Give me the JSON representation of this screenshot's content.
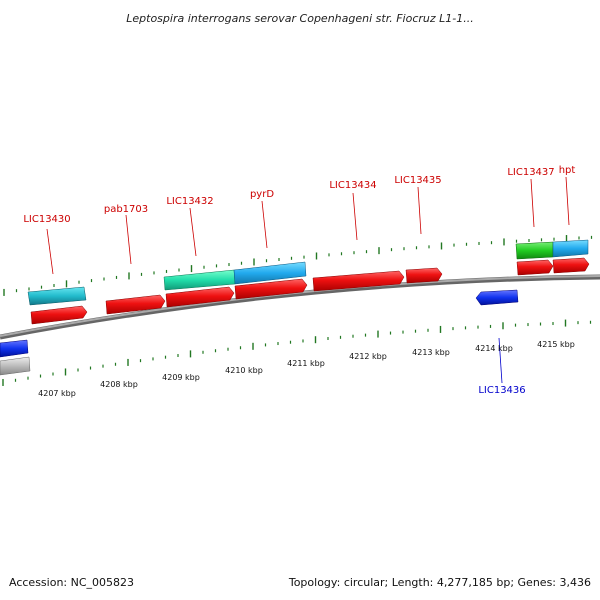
{
  "title": "Leptospira interrogans serovar Copenhageni str. Fiocruz L1-1...",
  "footer": {
    "accession": "Accession: NC_005823",
    "summary": "Topology: circular; Length: 4,277,185 bp; Genes: 3,436"
  },
  "colors": {
    "forward_label": "#cc0000",
    "reverse_label": "#0000cc",
    "backbone": "#888888",
    "tick": "#227722",
    "cds": "#ee1111",
    "cyan_feature": "#22bbcc",
    "teal_feature": "#22ddaa",
    "sky_feature": "#22aaee",
    "green_feature": "#22cc22",
    "blue_feature": "#1133ee",
    "grey_feature": "#bbbbbb"
  },
  "kbp_labels": [
    "4207 kbp",
    "4208 kbp",
    "4209 kbp",
    "4210 kbp",
    "4211 kbp",
    "4212 kbp",
    "4213 kbp",
    "4214 kbp",
    "4215 kbp"
  ],
  "forward_gene_labels": [
    "LIC13430",
    "pab1703",
    "LIC13432",
    "pyrD",
    "LIC13434",
    "LIC13435",
    "LIC13437",
    "hpt"
  ],
  "reverse_gene_labels": [
    "LIC13436"
  ]
}
